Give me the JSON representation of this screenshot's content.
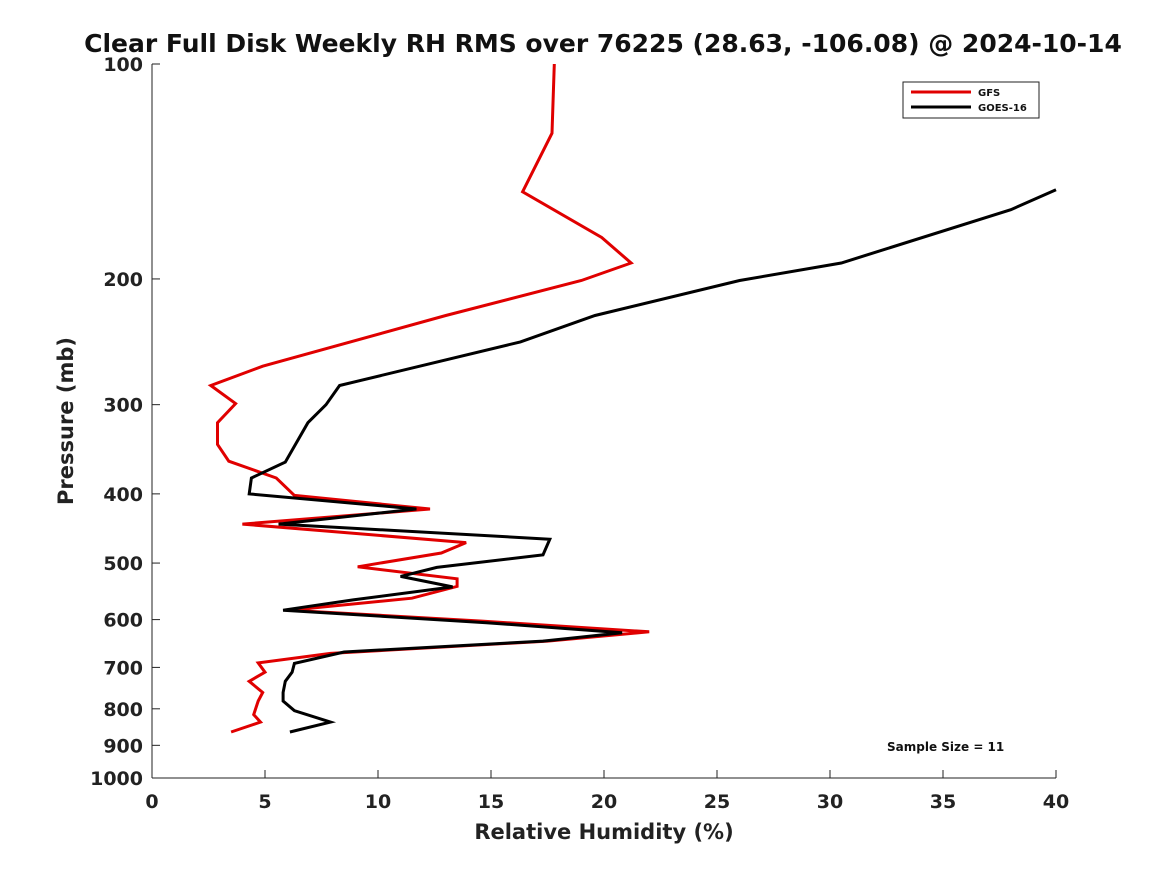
{
  "chart_data": {
    "type": "line",
    "title": "Clear Full Disk Weekly RH RMS over 76225 (28.63, -106.08) @ 2024-10-14",
    "xlabel": "Relative Humidity (%)",
    "ylabel": "Pressure (mb)",
    "xlim": [
      0,
      40
    ],
    "ylim": [
      100,
      1000
    ],
    "y_scale": "log",
    "y_reversed": true,
    "grid": false,
    "legend_position": "top-right",
    "xticks": [
      0,
      5,
      10,
      15,
      20,
      25,
      30,
      35,
      40
    ],
    "xtick_labels": [
      "0",
      "5",
      "10",
      "15",
      "20",
      "25",
      "30",
      "35",
      "40"
    ],
    "yticks": [
      100,
      200,
      300,
      400,
      500,
      600,
      700,
      800,
      900,
      1000
    ],
    "ytick_labels": [
      "100",
      "200",
      "300",
      "400",
      "500",
      "600",
      "700",
      "800",
      "900",
      "1000"
    ],
    "annotation": "Sample Size = 11",
    "series": [
      {
        "name": "GFS",
        "color": "#e00000",
        "points": [
          [
            17.8,
            100
          ],
          [
            17.7,
            125
          ],
          [
            16.4,
            151
          ],
          [
            19.9,
            175
          ],
          [
            21.2,
            190
          ],
          [
            19.0,
            201
          ],
          [
            13.0,
            225
          ],
          [
            4.9,
            265
          ],
          [
            2.6,
            282
          ],
          [
            3.7,
            299
          ],
          [
            2.9,
            318
          ],
          [
            2.9,
            341
          ],
          [
            3.4,
            360
          ],
          [
            5.5,
            380
          ],
          [
            6.3,
            402
          ],
          [
            12.3,
            420
          ],
          [
            4.0,
            441
          ],
          [
            13.9,
            468
          ],
          [
            12.8,
            484
          ],
          [
            9.1,
            506
          ],
          [
            13.5,
            526
          ],
          [
            13.5,
            539
          ],
          [
            11.5,
            560
          ],
          [
            6.1,
            582
          ],
          [
            14.6,
            603
          ],
          [
            22.0,
            624
          ],
          [
            17.5,
            643
          ],
          [
            7.9,
            669
          ],
          [
            4.7,
            690
          ],
          [
            5.0,
            711
          ],
          [
            4.3,
            732
          ],
          [
            4.9,
            759
          ],
          [
            4.7,
            780
          ],
          [
            4.5,
            815
          ],
          [
            4.8,
            835
          ],
          [
            3.5,
            862
          ]
        ]
      },
      {
        "name": "GOES-16",
        "color": "#000000",
        "points": [
          [
            40.0,
            150
          ],
          [
            38.0,
            160
          ],
          [
            30.5,
            190
          ],
          [
            26.0,
            201
          ],
          [
            19.6,
            225
          ],
          [
            16.3,
            245
          ],
          [
            8.3,
            282
          ],
          [
            7.7,
            300
          ],
          [
            6.9,
            318
          ],
          [
            5.9,
            361
          ],
          [
            4.4,
            380
          ],
          [
            4.3,
            400
          ],
          [
            11.7,
            420
          ],
          [
            5.6,
            441
          ],
          [
            17.6,
            463
          ],
          [
            17.3,
            487
          ],
          [
            12.6,
            507
          ],
          [
            11.0,
            522
          ],
          [
            13.3,
            540
          ],
          [
            8.9,
            563
          ],
          [
            5.8,
            582
          ],
          [
            14.8,
            606
          ],
          [
            20.8,
            626
          ],
          [
            17.3,
            643
          ],
          [
            8.5,
            666
          ],
          [
            6.3,
            691
          ],
          [
            6.2,
            711
          ],
          [
            5.9,
            732
          ],
          [
            5.8,
            759
          ],
          [
            5.8,
            780
          ],
          [
            6.3,
            805
          ],
          [
            7.9,
            835
          ],
          [
            6.1,
            862
          ]
        ]
      }
    ]
  }
}
